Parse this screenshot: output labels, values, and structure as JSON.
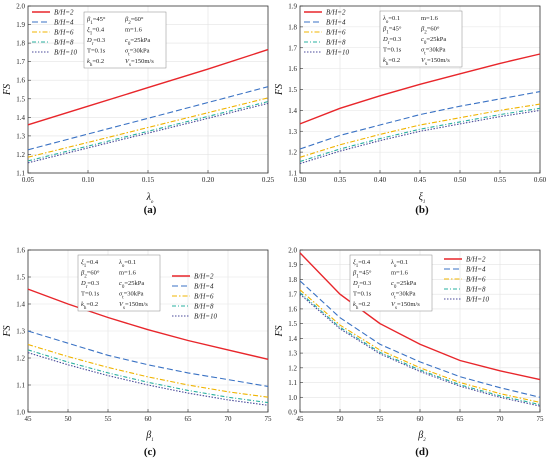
{
  "legend_entries": [
    "B/H=2",
    "B/H=4",
    "B/H=6",
    "B/H=8",
    "B/H=10"
  ],
  "series_colors": [
    "#e8262b",
    "#3a72c4",
    "#f0b400",
    "#2ab0a0",
    "#4a4a9a"
  ],
  "chart_data": [
    {
      "type": "line",
      "label": "(a)",
      "xlabel": "λo",
      "ylabel": "FS",
      "xlim": [
        0.05,
        0.25
      ],
      "ylim": [
        1.1,
        2.0
      ],
      "xticks": [
        "0.05",
        "0.10",
        "0.15",
        "0.20",
        "0.25"
      ],
      "yticks": [
        "1.1",
        "1.2",
        "1.3",
        "1.4",
        "1.5",
        "1.6",
        "1.7",
        "1.8",
        "1.9",
        "2.0"
      ],
      "legend": "top-left",
      "params": [
        "β1=45°",
        "β2=60°",
        "ξ1=0.4",
        "m=1.6",
        "Dr=0.3",
        "c0=25kPa",
        "T=0.1s",
        "σt=30kPa",
        "kh=0.2",
        "Vs=150m/s"
      ],
      "params_position": "top-left",
      "x": [
        0.05,
        0.1,
        0.15,
        0.2,
        0.25
      ],
      "series": [
        {
          "name": "B/H=2",
          "values": [
            1.36,
            1.46,
            1.56,
            1.66,
            1.765
          ]
        },
        {
          "name": "B/H=4",
          "values": [
            1.225,
            1.31,
            1.395,
            1.48,
            1.565
          ]
        },
        {
          "name": "B/H=6",
          "values": [
            1.185,
            1.265,
            1.345,
            1.425,
            1.505
          ]
        },
        {
          "name": "B/H=8",
          "values": [
            1.165,
            1.245,
            1.325,
            1.405,
            1.485
          ]
        },
        {
          "name": "B/H=10",
          "values": [
            1.155,
            1.235,
            1.315,
            1.395,
            1.475
          ]
        }
      ]
    },
    {
      "type": "line",
      "label": "(b)",
      "xlabel": "ξ1",
      "ylabel": "FS",
      "xlim": [
        0.3,
        0.6
      ],
      "ylim": [
        1.1,
        1.9
      ],
      "xticks": [
        "0.30",
        "0.35",
        "0.40",
        "0.45",
        "0.50",
        "0.55",
        "0.60"
      ],
      "yticks": [
        "1.1",
        "1.2",
        "1.3",
        "1.4",
        "1.5",
        "1.6",
        "1.7",
        "1.8",
        "1.9"
      ],
      "legend": "top-left",
      "params": [
        "λo=0.1",
        "m=1.6",
        "β1=45°",
        "β2=60°",
        "Dr=0.3",
        "c0=25kPa",
        "T=0.1s",
        "σt=30kPa",
        "kh=0.2",
        "Vs=150m/s"
      ],
      "params_position": "top-center",
      "x": [
        0.3,
        0.35,
        0.4,
        0.45,
        0.5,
        0.55,
        0.6
      ],
      "series": [
        {
          "name": "B/H=2",
          "values": [
            1.335,
            1.41,
            1.47,
            1.525,
            1.575,
            1.625,
            1.67
          ]
        },
        {
          "name": "B/H=4",
          "values": [
            1.215,
            1.28,
            1.33,
            1.38,
            1.42,
            1.455,
            1.49
          ]
        },
        {
          "name": "B/H=6",
          "values": [
            1.175,
            1.235,
            1.285,
            1.33,
            1.365,
            1.4,
            1.43
          ]
        },
        {
          "name": "B/H=8",
          "values": [
            1.155,
            1.215,
            1.265,
            1.31,
            1.345,
            1.38,
            1.41
          ]
        },
        {
          "name": "B/H=10",
          "values": [
            1.145,
            1.205,
            1.255,
            1.3,
            1.335,
            1.37,
            1.4
          ]
        }
      ]
    },
    {
      "type": "line",
      "label": "(c)",
      "xlabel": "β1",
      "ylabel": "FS",
      "xlim": [
        45,
        75
      ],
      "ylim": [
        1.0,
        1.6
      ],
      "xticks": [
        "45",
        "50",
        "55",
        "60",
        "65",
        "70",
        "75"
      ],
      "yticks": [
        "1.0",
        "1.1",
        "1.2",
        "1.3",
        "1.4",
        "1.5",
        "1.6"
      ],
      "legend": "top-right",
      "params": [
        "ξ1=0.4",
        "λo=0.1",
        "β2=60°",
        "m=1.6",
        "Dr=0.3",
        "c0=25kPa",
        "T=0.1s",
        "σt=30kPa",
        "kh=0.2",
        "Vs=150m/s"
      ],
      "params_position": "top-center",
      "x": [
        45,
        50,
        55,
        60,
        65,
        70,
        75
      ],
      "series": [
        {
          "name": "B/H=2",
          "values": [
            1.455,
            1.4,
            1.35,
            1.305,
            1.265,
            1.23,
            1.195
          ]
        },
        {
          "name": "B/H=4",
          "values": [
            1.3,
            1.255,
            1.21,
            1.175,
            1.145,
            1.12,
            1.095
          ]
        },
        {
          "name": "B/H=6",
          "values": [
            1.25,
            1.205,
            1.165,
            1.13,
            1.1,
            1.075,
            1.055
          ]
        },
        {
          "name": "B/H=8",
          "values": [
            1.23,
            1.185,
            1.145,
            1.11,
            1.08,
            1.055,
            1.035
          ]
        },
        {
          "name": "B/H=10",
          "values": [
            1.22,
            1.175,
            1.135,
            1.1,
            1.07,
            1.045,
            1.025
          ]
        }
      ]
    },
    {
      "type": "line",
      "label": "(d)",
      "xlabel": "β2",
      "ylabel": "FS",
      "xlim": [
        45,
        75
      ],
      "ylim": [
        0.9,
        2.0
      ],
      "xticks": [
        "45",
        "50",
        "55",
        "60",
        "65",
        "70",
        "75"
      ],
      "yticks": [
        "0.9",
        "1.0",
        "1.1",
        "1.2",
        "1.3",
        "1.4",
        "1.5",
        "1.6",
        "1.7",
        "1.8",
        "1.9",
        "2.0"
      ],
      "legend": "top-right",
      "params": [
        "ξ1=0.4",
        "λo=0.1",
        "β1=45°",
        "m=1.6",
        "Dr=0.3",
        "c0=25kPa",
        "T=0.1s",
        "σt=30kPa",
        "kh=0.2",
        "Vs=150m/s"
      ],
      "params_position": "top-center",
      "x": [
        45,
        50,
        55,
        60,
        65,
        70,
        75
      ],
      "series": [
        {
          "name": "B/H=2",
          "values": [
            1.98,
            1.7,
            1.5,
            1.36,
            1.25,
            1.18,
            1.12
          ]
        },
        {
          "name": "B/H=4",
          "values": [
            1.79,
            1.54,
            1.36,
            1.24,
            1.14,
            1.065,
            1.0
          ]
        },
        {
          "name": "B/H=6",
          "values": [
            1.73,
            1.49,
            1.32,
            1.2,
            1.1,
            1.025,
            0.965
          ]
        },
        {
          "name": "B/H=8",
          "values": [
            1.71,
            1.475,
            1.305,
            1.185,
            1.085,
            1.01,
            0.95
          ]
        },
        {
          "name": "B/H=10",
          "values": [
            1.7,
            1.465,
            1.295,
            1.175,
            1.075,
            1.0,
            0.94
          ]
        }
      ]
    }
  ]
}
